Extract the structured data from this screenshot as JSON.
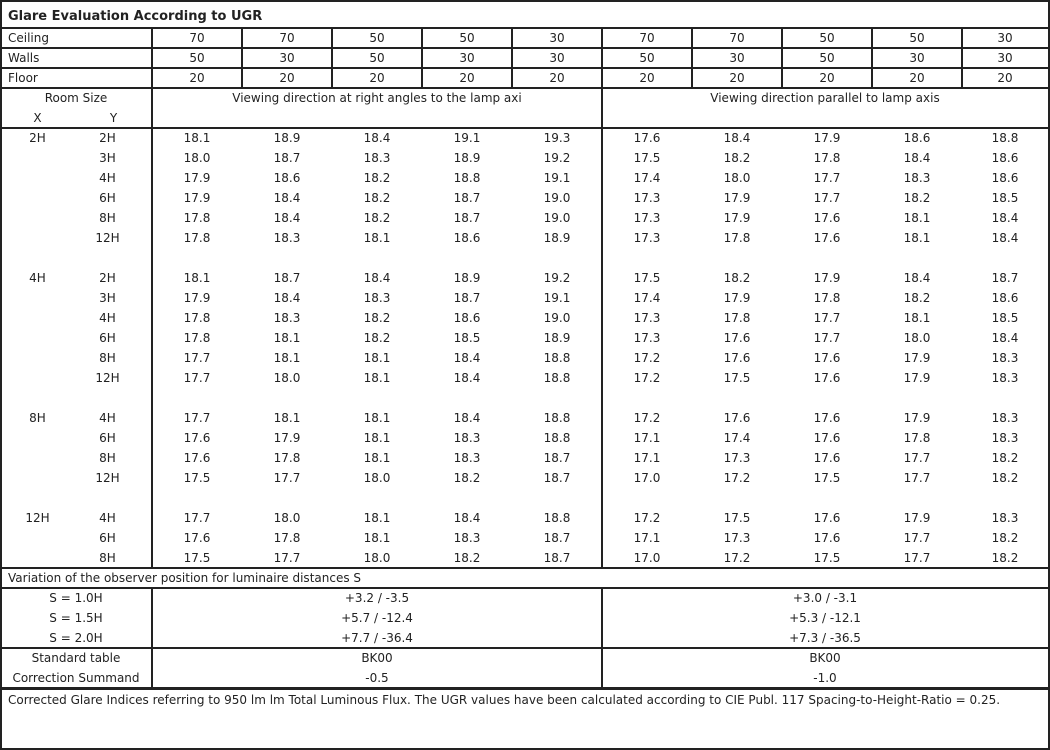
{
  "title": "Glare Evaluation According to UGR",
  "reflectances": {
    "ceiling": {
      "label": "Ceiling",
      "values": [
        "70",
        "70",
        "50",
        "50",
        "30",
        "70",
        "70",
        "50",
        "50",
        "30"
      ]
    },
    "walls": {
      "label": "Walls",
      "values": [
        "50",
        "30",
        "50",
        "30",
        "30",
        "50",
        "30",
        "50",
        "30",
        "30"
      ]
    },
    "floor": {
      "label": "Floor",
      "values": [
        "20",
        "20",
        "20",
        "20",
        "20",
        "20",
        "20",
        "20",
        "20",
        "20"
      ]
    }
  },
  "header": {
    "room_size": "Room Size",
    "x": "X",
    "y": "Y",
    "perpendicular": "Viewing direction at right angles to the lamp axi",
    "parallel": "Viewing direction parallel to lamp axis"
  },
  "groups": [
    {
      "x": "2H",
      "rows": [
        {
          "y": "2H",
          "v": [
            "18.1",
            "18.9",
            "18.4",
            "19.1",
            "19.3",
            "17.6",
            "18.4",
            "17.9",
            "18.6",
            "18.8"
          ]
        },
        {
          "y": "3H",
          "v": [
            "18.0",
            "18.7",
            "18.3",
            "18.9",
            "19.2",
            "17.5",
            "18.2",
            "17.8",
            "18.4",
            "18.6"
          ]
        },
        {
          "y": "4H",
          "v": [
            "17.9",
            "18.6",
            "18.2",
            "18.8",
            "19.1",
            "17.4",
            "18.0",
            "17.7",
            "18.3",
            "18.6"
          ]
        },
        {
          "y": "6H",
          "v": [
            "17.9",
            "18.4",
            "18.2",
            "18.7",
            "19.0",
            "17.3",
            "17.9",
            "17.7",
            "18.2",
            "18.5"
          ]
        },
        {
          "y": "8H",
          "v": [
            "17.8",
            "18.4",
            "18.2",
            "18.7",
            "19.0",
            "17.3",
            "17.9",
            "17.6",
            "18.1",
            "18.4"
          ]
        },
        {
          "y": "12H",
          "v": [
            "17.8",
            "18.3",
            "18.1",
            "18.6",
            "18.9",
            "17.3",
            "17.8",
            "17.6",
            "18.1",
            "18.4"
          ]
        }
      ]
    },
    {
      "x": "4H",
      "rows": [
        {
          "y": "2H",
          "v": [
            "18.1",
            "18.7",
            "18.4",
            "18.9",
            "19.2",
            "17.5",
            "18.2",
            "17.9",
            "18.4",
            "18.7"
          ]
        },
        {
          "y": "3H",
          "v": [
            "17.9",
            "18.4",
            "18.3",
            "18.7",
            "19.1",
            "17.4",
            "17.9",
            "17.8",
            "18.2",
            "18.6"
          ]
        },
        {
          "y": "4H",
          "v": [
            "17.8",
            "18.3",
            "18.2",
            "18.6",
            "19.0",
            "17.3",
            "17.8",
            "17.7",
            "18.1",
            "18.5"
          ]
        },
        {
          "y": "6H",
          "v": [
            "17.8",
            "18.1",
            "18.2",
            "18.5",
            "18.9",
            "17.3",
            "17.6",
            "17.7",
            "18.0",
            "18.4"
          ]
        },
        {
          "y": "8H",
          "v": [
            "17.7",
            "18.1",
            "18.1",
            "18.4",
            "18.8",
            "17.2",
            "17.6",
            "17.6",
            "17.9",
            "18.3"
          ]
        },
        {
          "y": "12H",
          "v": [
            "17.7",
            "18.0",
            "18.1",
            "18.4",
            "18.8",
            "17.2",
            "17.5",
            "17.6",
            "17.9",
            "18.3"
          ]
        }
      ]
    },
    {
      "x": "8H",
      "rows": [
        {
          "y": "4H",
          "v": [
            "17.7",
            "18.1",
            "18.1",
            "18.4",
            "18.8",
            "17.2",
            "17.6",
            "17.6",
            "17.9",
            "18.3"
          ]
        },
        {
          "y": "6H",
          "v": [
            "17.6",
            "17.9",
            "18.1",
            "18.3",
            "18.8",
            "17.1",
            "17.4",
            "17.6",
            "17.8",
            "18.3"
          ]
        },
        {
          "y": "8H",
          "v": [
            "17.6",
            "17.8",
            "18.1",
            "18.3",
            "18.7",
            "17.1",
            "17.3",
            "17.6",
            "17.7",
            "18.2"
          ]
        },
        {
          "y": "12H",
          "v": [
            "17.5",
            "17.7",
            "18.0",
            "18.2",
            "18.7",
            "17.0",
            "17.2",
            "17.5",
            "17.7",
            "18.2"
          ]
        }
      ]
    },
    {
      "x": "12H",
      "rows": [
        {
          "y": "4H",
          "v": [
            "17.7",
            "18.0",
            "18.1",
            "18.4",
            "18.8",
            "17.2",
            "17.5",
            "17.6",
            "17.9",
            "18.3"
          ]
        },
        {
          "y": "6H",
          "v": [
            "17.6",
            "17.8",
            "18.1",
            "18.3",
            "18.7",
            "17.1",
            "17.3",
            "17.6",
            "17.7",
            "18.2"
          ]
        },
        {
          "y": "8H",
          "v": [
            "17.5",
            "17.7",
            "18.0",
            "18.2",
            "18.7",
            "17.0",
            "17.2",
            "17.5",
            "17.7",
            "18.2"
          ]
        }
      ]
    }
  ],
  "variation": {
    "title": "Variation of the observer position for luminaire distances S",
    "rows": [
      {
        "label": "S = 1.0H",
        "perpendicular": "+3.2 / -3.5",
        "parallel": "+3.0 / -3.1"
      },
      {
        "label": "S = 1.5H",
        "perpendicular": "+5.7 / -12.4",
        "parallel": "+5.3 / -12.1"
      },
      {
        "label": "S = 2.0H",
        "perpendicular": "+7.7 / -36.4",
        "parallel": "+7.3 / -36.5"
      }
    ]
  },
  "standard": {
    "rows": [
      {
        "label": "Standard table",
        "perpendicular": "BK00",
        "parallel": "BK00"
      },
      {
        "label": "Correction Summand",
        "perpendicular": "-0.5",
        "parallel": "-1.0"
      }
    ]
  },
  "footer": "Corrected Glare Indices referring to 950 lm lm Total Luminous Flux. The UGR values have been calculated according to CIE Publ. 117     Spacing-to-Height-Ratio = 0.25."
}
